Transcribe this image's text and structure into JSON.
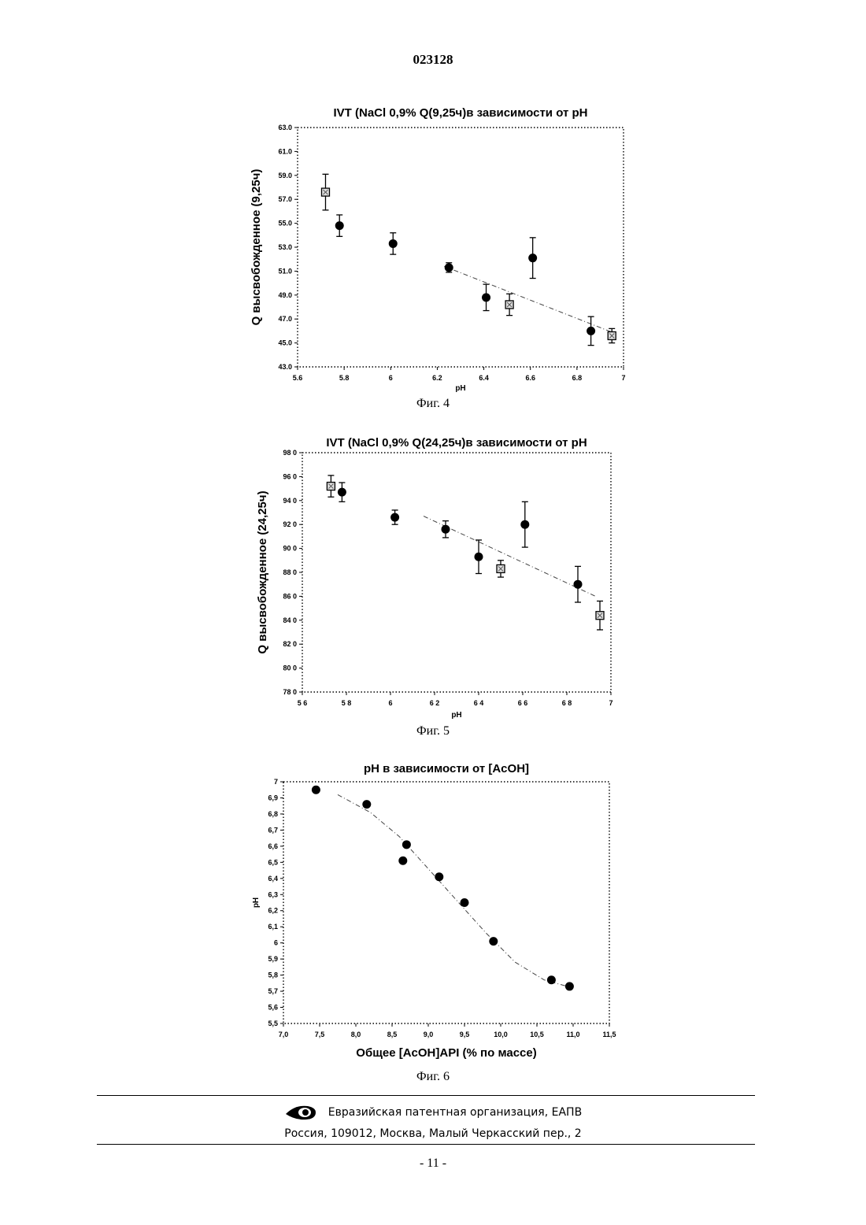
{
  "header": {
    "doc_number": "023128"
  },
  "chart_data": [
    {
      "type": "scatter",
      "title": "IVT (NaCl 0,9% Q(9,25ч)в зависимости от pH",
      "xlabel": "pH",
      "ylabel": "Q высвобожденное (9,25ч)",
      "caption": "Фиг. 4",
      "xlim": [
        5.6,
        7.0
      ],
      "ylim": [
        43.0,
        63.0
      ],
      "xticks": [
        "5.6",
        "5.8",
        "6",
        "6.2",
        "6.4",
        "6.6",
        "6.8",
        "7"
      ],
      "yticks": [
        "43.0",
        "45.0",
        "47.0",
        "49.0",
        "51.0",
        "53.0",
        "55.0",
        "57.0",
        "59.0",
        "61.0",
        "63.0"
      ],
      "trend": [
        [
          6.23,
          51.4
        ],
        [
          6.95,
          45.9
        ]
      ],
      "points": [
        {
          "x": 5.72,
          "y": 57.6,
          "err": 1.5,
          "marker": "square"
        },
        {
          "x": 5.78,
          "y": 54.8,
          "err": 0.9,
          "marker": "circle"
        },
        {
          "x": 6.01,
          "y": 53.3,
          "err": 0.9,
          "marker": "circle"
        },
        {
          "x": 6.25,
          "y": 51.3,
          "err": 0.4,
          "marker": "circle"
        },
        {
          "x": 6.41,
          "y": 48.8,
          "err": 1.1,
          "marker": "circle"
        },
        {
          "x": 6.51,
          "y": 48.2,
          "err": 0.9,
          "marker": "square"
        },
        {
          "x": 6.61,
          "y": 52.1,
          "err": 1.7,
          "marker": "circle"
        },
        {
          "x": 6.86,
          "y": 46.0,
          "err": 1.2,
          "marker": "circle"
        },
        {
          "x": 6.95,
          "y": 45.6,
          "err": 0.6,
          "marker": "square"
        }
      ]
    },
    {
      "type": "scatter",
      "title": "IVT (NaCl 0,9% Q(24,25ч)в зависимости от pH",
      "xlabel": "pH",
      "ylabel": "Q высвобожденное (24,25ч)",
      "caption": "Фиг. 5",
      "xlim": [
        5.6,
        7.0
      ],
      "ylim": [
        78.0,
        98.0
      ],
      "xticks": [
        "5 6",
        "5 8",
        "6",
        "6 2",
        "6 4",
        "6 6",
        "6 8",
        "7"
      ],
      "yticks": [
        "78 0",
        "80 0",
        "82 0",
        "84 0",
        "86 0",
        "88 0",
        "90 0",
        "92 0",
        "94 0",
        "96 0",
        "98 0"
      ],
      "trend": [
        [
          6.15,
          92.7
        ],
        [
          6.93,
          86.0
        ]
      ],
      "points": [
        {
          "x": 5.73,
          "y": 95.2,
          "err": 0.9,
          "marker": "square"
        },
        {
          "x": 5.78,
          "y": 94.7,
          "err": 0.8,
          "marker": "circle"
        },
        {
          "x": 6.02,
          "y": 92.6,
          "err": 0.6,
          "marker": "circle"
        },
        {
          "x": 6.25,
          "y": 91.6,
          "err": 0.7,
          "marker": "circle"
        },
        {
          "x": 6.4,
          "y": 89.3,
          "err": 1.4,
          "marker": "circle"
        },
        {
          "x": 6.5,
          "y": 88.3,
          "err": 0.7,
          "marker": "square"
        },
        {
          "x": 6.61,
          "y": 92.0,
          "err": 1.9,
          "marker": "circle"
        },
        {
          "x": 6.85,
          "y": 87.0,
          "err": 1.5,
          "marker": "circle"
        },
        {
          "x": 6.95,
          "y": 84.4,
          "err": 1.2,
          "marker": "square"
        }
      ]
    },
    {
      "type": "scatter",
      "title": "pH в зависимости от [AcOH]",
      "xlabel": "Общее [AcOH]API (% по массе)",
      "ylabel": "pH",
      "caption": "Фиг. 6",
      "xlim": [
        7.0,
        11.5
      ],
      "ylim": [
        5.5,
        7.0
      ],
      "xticks": [
        "7,0",
        "7,5",
        "8,0",
        "8,5",
        "9,0",
        "9,5",
        "10,0",
        "10,5",
        "11,0",
        "11,5"
      ],
      "yticks": [
        "5,5",
        "5,6",
        "5,7",
        "5,8",
        "5,9",
        "6",
        "6,1",
        "6,2",
        "6,3",
        "6,4",
        "6,5",
        "6,6",
        "6,7",
        "6,8",
        "6,9",
        "7"
      ],
      "trend": [
        [
          7.75,
          6.92
        ],
        [
          8.2,
          6.81
        ],
        [
          8.6,
          6.66
        ],
        [
          9.0,
          6.46
        ],
        [
          9.4,
          6.26
        ],
        [
          9.8,
          6.06
        ],
        [
          10.2,
          5.88
        ],
        [
          10.6,
          5.77
        ],
        [
          11.0,
          5.72
        ]
      ],
      "points": [
        {
          "x": 7.45,
          "y": 6.95,
          "marker": "circle"
        },
        {
          "x": 8.15,
          "y": 6.86,
          "marker": "circle"
        },
        {
          "x": 8.7,
          "y": 6.61,
          "marker": "circle"
        },
        {
          "x": 8.65,
          "y": 6.51,
          "marker": "circle"
        },
        {
          "x": 9.15,
          "y": 6.41,
          "marker": "circle"
        },
        {
          "x": 9.5,
          "y": 6.25,
          "marker": "circle"
        },
        {
          "x": 9.9,
          "y": 6.01,
          "marker": "circle"
        },
        {
          "x": 10.7,
          "y": 5.77,
          "marker": "circle"
        },
        {
          "x": 10.95,
          "y": 5.73,
          "marker": "circle"
        }
      ]
    }
  ],
  "footer": {
    "org": "Евразийская патентная организация, ЕАПВ",
    "address": "Россия, 109012, Москва, Малый Черкасский пер., 2",
    "logo": "eapo-eye-logo",
    "page": "- 11 -"
  }
}
